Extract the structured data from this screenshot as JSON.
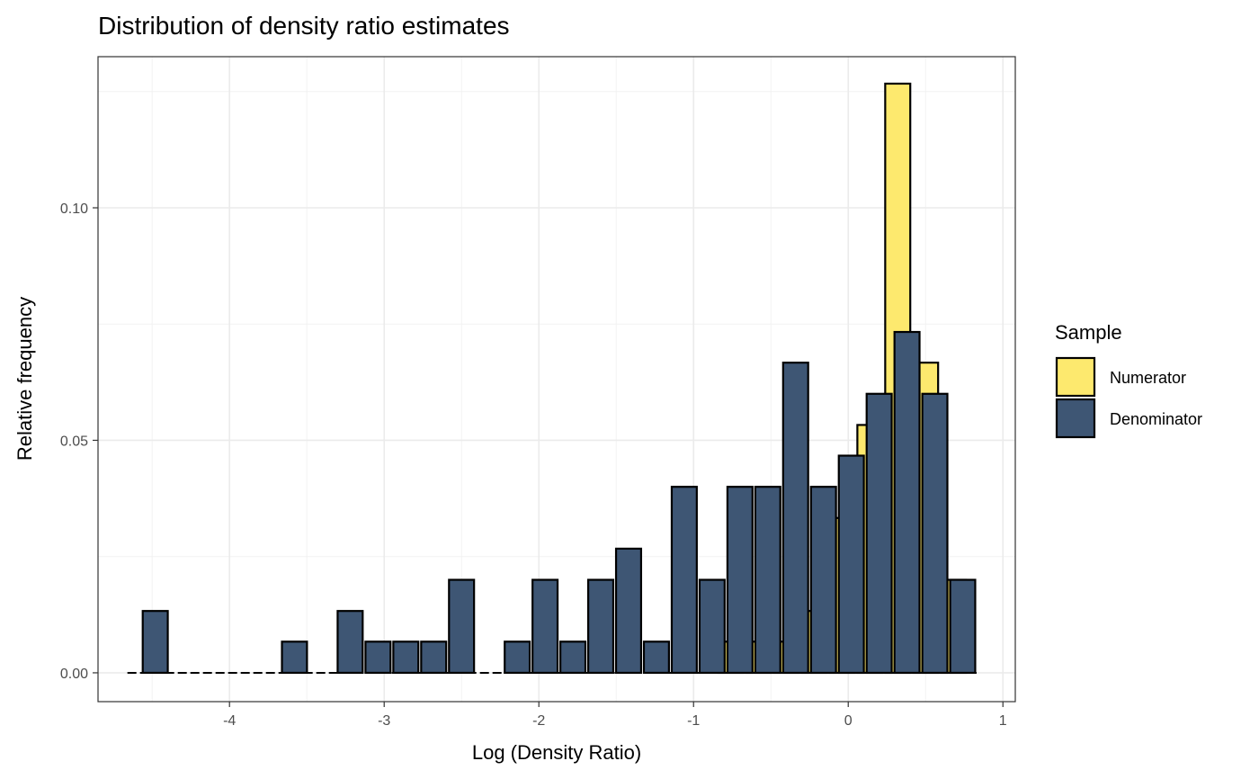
{
  "chart_data": {
    "type": "bar",
    "title": "Distribution of density ratio estimates",
    "xlabel": "Log (Density Ratio)",
    "ylabel": "Relative frequency",
    "xlim": [
      -4.85,
      1.08
    ],
    "ylim": [
      -0.0062,
      0.1325
    ],
    "x_ticks": [
      -4,
      -3,
      -2,
      -1,
      0,
      1
    ],
    "y_ticks": [
      0.0,
      0.05,
      0.1
    ],
    "y_tick_labels": [
      "0.00",
      "0.05",
      "0.10"
    ],
    "grid": true,
    "legend": {
      "title": "Sample",
      "placement": "right"
    },
    "bin_width": 0.18,
    "series": [
      {
        "name": "Numerator",
        "color": "#FDE96E",
        "bins": [
          {
            "x": -0.76,
            "y": 0.0067
          },
          {
            "x": -0.58,
            "y": 0.0067
          },
          {
            "x": -0.4,
            "y": 0.0067
          },
          {
            "x": -0.22,
            "y": 0.0133
          },
          {
            "x": -0.04,
            "y": 0.0333
          },
          {
            "x": 0.14,
            "y": 0.0533
          },
          {
            "x": 0.32,
            "y": 0.1267
          },
          {
            "x": 0.5,
            "y": 0.0667
          },
          {
            "x": 0.68,
            "y": 0.02
          }
        ]
      },
      {
        "name": "Denominator",
        "color": "#3E5674",
        "bins": [
          {
            "x": -4.48,
            "y": 0.0133
          },
          {
            "x": -3.58,
            "y": 0.0067
          },
          {
            "x": -3.22,
            "y": 0.0133
          },
          {
            "x": -3.04,
            "y": 0.0067
          },
          {
            "x": -2.86,
            "y": 0.0067
          },
          {
            "x": -2.68,
            "y": 0.0067
          },
          {
            "x": -2.5,
            "y": 0.02
          },
          {
            "x": -2.14,
            "y": 0.0067
          },
          {
            "x": -1.96,
            "y": 0.02
          },
          {
            "x": -1.78,
            "y": 0.0067
          },
          {
            "x": -1.6,
            "y": 0.02
          },
          {
            "x": -1.42,
            "y": 0.0267
          },
          {
            "x": -1.24,
            "y": 0.0067
          },
          {
            "x": -1.06,
            "y": 0.04
          },
          {
            "x": -0.88,
            "y": 0.02
          },
          {
            "x": -0.7,
            "y": 0.04
          },
          {
            "x": -0.52,
            "y": 0.04
          },
          {
            "x": -0.34,
            "y": 0.0667
          },
          {
            "x": -0.16,
            "y": 0.04
          },
          {
            "x": 0.02,
            "y": 0.0467
          },
          {
            "x": 0.2,
            "y": 0.06
          },
          {
            "x": 0.38,
            "y": 0.0733
          },
          {
            "x": 0.56,
            "y": 0.06
          },
          {
            "x": 0.74,
            "y": 0.02
          }
        ]
      }
    ],
    "baseline_range": [
      -4.66,
      0.83
    ]
  }
}
